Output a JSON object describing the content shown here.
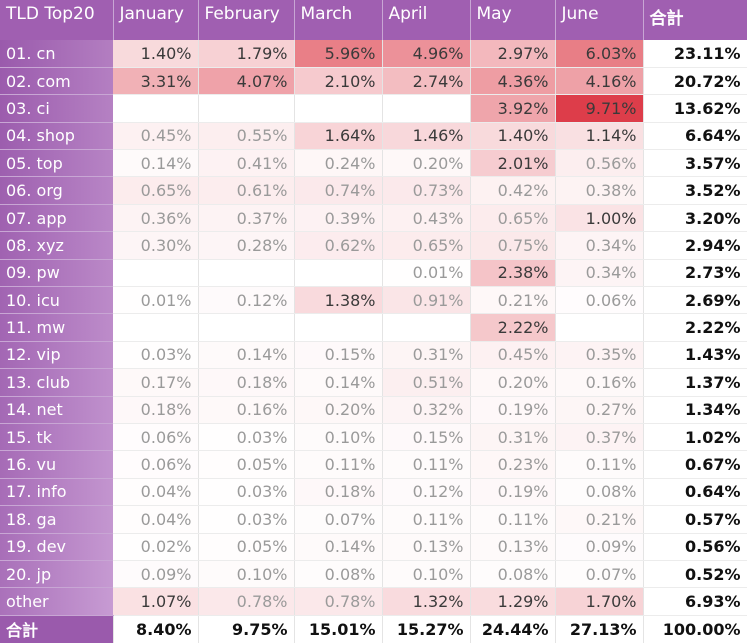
{
  "chart_data": {
    "type": "table",
    "title": "",
    "corner_label": "TLD Top20",
    "columns": [
      "January",
      "February",
      "March",
      "April",
      "May",
      "June"
    ],
    "total_label": "合計",
    "rows": [
      {
        "label": "01. cn",
        "values": [
          "1.40%",
          "1.79%",
          "5.96%",
          "4.96%",
          "2.97%",
          "6.03%"
        ],
        "total": "23.11%"
      },
      {
        "label": "02. com",
        "values": [
          "3.31%",
          "4.07%",
          "2.10%",
          "2.74%",
          "4.36%",
          "4.16%"
        ],
        "total": "20.72%"
      },
      {
        "label": "03. ci",
        "values": [
          "",
          "",
          "",
          "",
          "3.92%",
          "9.71%"
        ],
        "total": "13.62%"
      },
      {
        "label": "04. shop",
        "values": [
          "0.45%",
          "0.55%",
          "1.64%",
          "1.46%",
          "1.40%",
          "1.14%"
        ],
        "total": "6.64%"
      },
      {
        "label": "05. top",
        "values": [
          "0.14%",
          "0.41%",
          "0.24%",
          "0.20%",
          "2.01%",
          "0.56%"
        ],
        "total": "3.57%"
      },
      {
        "label": "06. org",
        "values": [
          "0.65%",
          "0.61%",
          "0.74%",
          "0.73%",
          "0.42%",
          "0.38%"
        ],
        "total": "3.52%"
      },
      {
        "label": "07. app",
        "values": [
          "0.36%",
          "0.37%",
          "0.39%",
          "0.43%",
          "0.65%",
          "1.00%"
        ],
        "total": "3.20%"
      },
      {
        "label": "08. xyz",
        "values": [
          "0.30%",
          "0.28%",
          "0.62%",
          "0.65%",
          "0.75%",
          "0.34%"
        ],
        "total": "2.94%"
      },
      {
        "label": "09. pw",
        "values": [
          "",
          "",
          "",
          "0.01%",
          "2.38%",
          "0.34%"
        ],
        "total": "2.73%"
      },
      {
        "label": "10. icu",
        "values": [
          "0.01%",
          "0.12%",
          "1.38%",
          "0.91%",
          "0.21%",
          "0.06%"
        ],
        "total": "2.69%"
      },
      {
        "label": "11. mw",
        "values": [
          "",
          "",
          "",
          "",
          "2.22%",
          ""
        ],
        "total": "2.22%"
      },
      {
        "label": "12. vip",
        "values": [
          "0.03%",
          "0.14%",
          "0.15%",
          "0.31%",
          "0.45%",
          "0.35%"
        ],
        "total": "1.43%"
      },
      {
        "label": "13. club",
        "values": [
          "0.17%",
          "0.18%",
          "0.14%",
          "0.51%",
          "0.20%",
          "0.16%"
        ],
        "total": "1.37%"
      },
      {
        "label": "14. net",
        "values": [
          "0.18%",
          "0.16%",
          "0.20%",
          "0.32%",
          "0.19%",
          "0.27%"
        ],
        "total": "1.34%"
      },
      {
        "label": "15. tk",
        "values": [
          "0.06%",
          "0.03%",
          "0.10%",
          "0.15%",
          "0.31%",
          "0.37%"
        ],
        "total": "1.02%"
      },
      {
        "label": "16. vu",
        "values": [
          "0.06%",
          "0.05%",
          "0.11%",
          "0.11%",
          "0.23%",
          "0.11%"
        ],
        "total": "0.67%"
      },
      {
        "label": "17. info",
        "values": [
          "0.04%",
          "0.03%",
          "0.18%",
          "0.12%",
          "0.19%",
          "0.08%"
        ],
        "total": "0.64%"
      },
      {
        "label": "18. ga",
        "values": [
          "0.04%",
          "0.03%",
          "0.07%",
          "0.11%",
          "0.11%",
          "0.21%"
        ],
        "total": "0.57%"
      },
      {
        "label": "19. dev",
        "values": [
          "0.02%",
          "0.05%",
          "0.14%",
          "0.13%",
          "0.13%",
          "0.09%"
        ],
        "total": "0.56%"
      },
      {
        "label": "20. jp",
        "values": [
          "0.09%",
          "0.10%",
          "0.08%",
          "0.10%",
          "0.08%",
          "0.07%"
        ],
        "total": "0.52%"
      },
      {
        "label": "other",
        "values": [
          "1.07%",
          "0.78%",
          "0.78%",
          "1.32%",
          "1.29%",
          "1.70%"
        ],
        "total": "6.93%"
      }
    ],
    "column_totals": [
      "8.40%",
      "9.75%",
      "15.01%",
      "15.27%",
      "24.44%",
      "27.13%"
    ],
    "grand_total": "100.00%",
    "colors": {
      "header": "#a05fb1",
      "label_gradient_start": "#9a5aac",
      "label_gradient_end": "#c79bd3",
      "heat_max": "#dd3d4a",
      "heat_min": "#ffffff"
    }
  }
}
